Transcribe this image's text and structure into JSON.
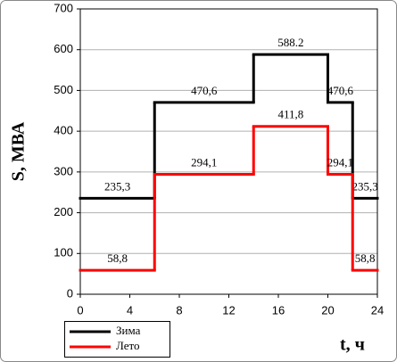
{
  "chart_data": {
    "type": "step",
    "x_label": "t, ч",
    "y_label": "S, МВА",
    "x": [
      0,
      6,
      14,
      20,
      22
    ],
    "xlim": [
      0,
      24
    ],
    "xticks": [
      0,
      4,
      8,
      12,
      16,
      20,
      24
    ],
    "ylim": [
      0,
      700
    ],
    "yticks": [
      0,
      100,
      200,
      300,
      400,
      500,
      600,
      700
    ],
    "grid": true,
    "legend": "bottom-left",
    "series": [
      {
        "name": "Зима",
        "color": "#000000",
        "values": [
          235.3,
          470.6,
          588.2,
          470.6,
          235.3
        ],
        "value_labels": [
          "235,3",
          "470,6",
          "588.2",
          "470,6",
          "235,3"
        ]
      },
      {
        "name": "Лето",
        "color": "#ff0000",
        "values": [
          58.8,
          294.1,
          411.8,
          294.1,
          58.8
        ],
        "value_labels": [
          "58,8",
          "294,1",
          "411,8",
          "294,1",
          "58,8"
        ]
      }
    ]
  }
}
